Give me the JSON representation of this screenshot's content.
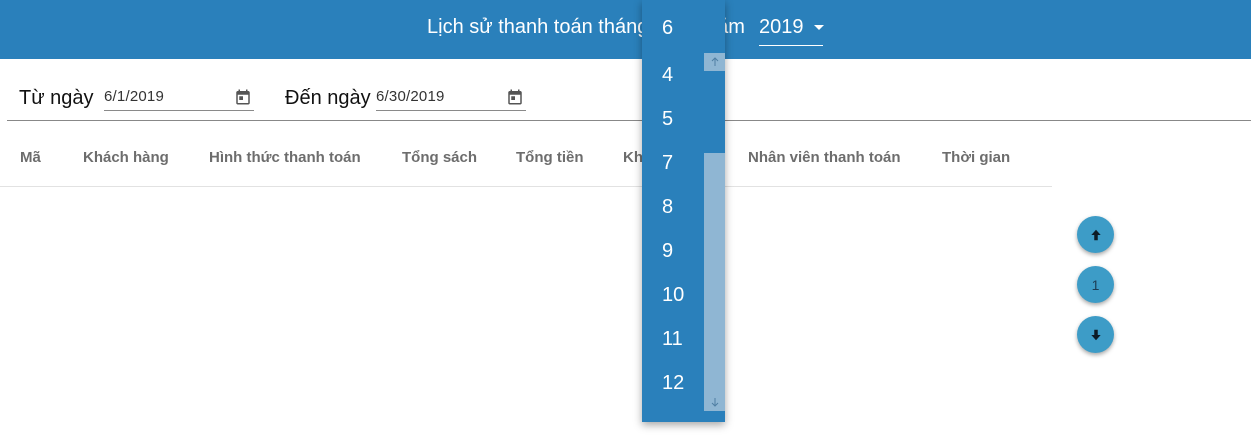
{
  "header": {
    "title": "Lịch sử thanh toán tháng",
    "year_prefix": "năm",
    "year_value": "2019"
  },
  "filters": {
    "from_label": "Từ ngày",
    "from_value": "6/1/2019",
    "to_label": "Đến ngày",
    "to_value": "6/30/2019"
  },
  "table": {
    "columns": [
      "Mã",
      "Khách hàng",
      "Hình thức thanh toán",
      "Tổng sách",
      "Tổng tiền",
      "Khách trả",
      "Nhân viên thanh toán",
      "Thời gian"
    ]
  },
  "pagination": {
    "current_page": "1"
  },
  "month_dropdown": {
    "selected": "6",
    "items": [
      "4",
      "5",
      "7",
      "8",
      "9",
      "10",
      "11",
      "12"
    ]
  },
  "colors": {
    "primary": "#2a80bb",
    "fab": "#3d9cc7",
    "scrollbar": "#8fb6d3"
  }
}
